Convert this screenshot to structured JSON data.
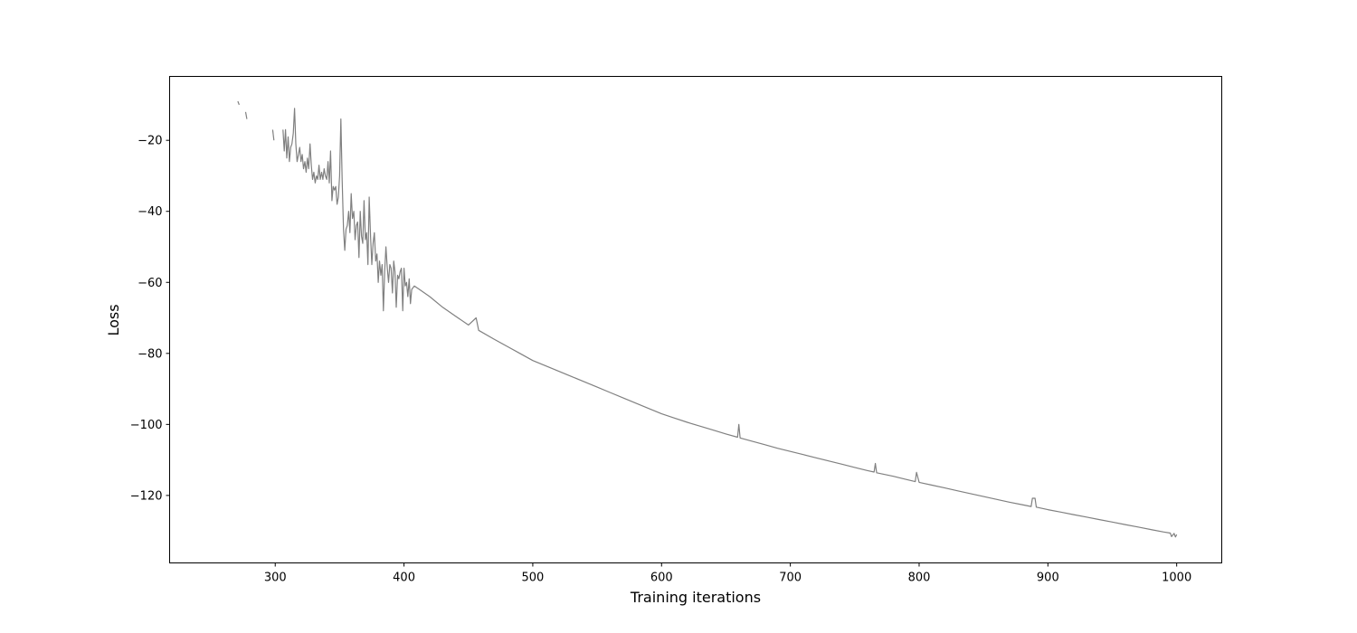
{
  "chart_data": {
    "type": "line",
    "title": "",
    "xlabel": "Training iterations",
    "ylabel": "Loss",
    "xlim": [
      218,
      1035
    ],
    "ylim": [
      -139,
      -2
    ],
    "xticks": [
      300,
      400,
      500,
      600,
      700,
      800,
      900,
      1000
    ],
    "yticks": [
      -20,
      -40,
      -60,
      -80,
      -100,
      -120
    ],
    "grid": false,
    "legend": null,
    "line_color": "#808080",
    "series": [
      {
        "segments": [
          [
            [
              271,
              -9
            ],
            [
              272,
              -10
            ]
          ],
          [
            [
              277,
              -12
            ],
            [
              278,
              -14
            ]
          ],
          [
            [
              298,
              -17
            ],
            [
              299,
              -20
            ]
          ],
          [
            [
              306,
              -17
            ],
            [
              307,
              -23
            ],
            [
              308,
              -17
            ],
            [
              309,
              -25
            ],
            [
              310,
              -19
            ],
            [
              311,
              -26
            ],
            [
              312,
              -22
            ],
            [
              313,
              -21
            ],
            [
              314,
              -18
            ],
            [
              315,
              -11
            ],
            [
              316,
              -21
            ],
            [
              317,
              -26
            ],
            [
              318,
              -24
            ],
            [
              319,
              -22
            ],
            [
              320,
              -26
            ],
            [
              321,
              -24
            ],
            [
              322,
              -28
            ],
            [
              323,
              -26
            ],
            [
              324,
              -29
            ],
            [
              325,
              -25
            ],
            [
              326,
              -28
            ],
            [
              327,
              -21
            ],
            [
              328,
              -27
            ],
            [
              329,
              -31
            ],
            [
              330,
              -29
            ],
            [
              331,
              -32
            ],
            [
              332,
              -30
            ],
            [
              333,
              -31
            ],
            [
              334,
              -27
            ],
            [
              335,
              -31
            ],
            [
              336,
              -29
            ],
            [
              337,
              -31
            ],
            [
              338,
              -28
            ],
            [
              339,
              -30
            ],
            [
              340,
              -31
            ],
            [
              341,
              -26
            ],
            [
              342,
              -32
            ],
            [
              343,
              -23
            ],
            [
              344,
              -37
            ],
            [
              345,
              -33
            ],
            [
              346,
              -34
            ],
            [
              347,
              -33
            ],
            [
              348,
              -38
            ],
            [
              349,
              -36
            ],
            [
              350,
              -30
            ],
            [
              351,
              -14
            ],
            [
              352,
              -31
            ],
            [
              353,
              -45
            ],
            [
              354,
              -51
            ],
            [
              355,
              -45
            ],
            [
              356,
              -44
            ],
            [
              357,
              -40
            ],
            [
              358,
              -46
            ],
            [
              359,
              -35
            ],
            [
              360,
              -42
            ],
            [
              361,
              -40
            ],
            [
              362,
              -48
            ],
            [
              363,
              -44
            ],
            [
              364,
              -43
            ],
            [
              365,
              -53
            ],
            [
              366,
              -40
            ],
            [
              367,
              -47
            ],
            [
              368,
              -49
            ],
            [
              369,
              -37
            ],
            [
              370,
              -48
            ],
            [
              371,
              -46
            ],
            [
              372,
              -55
            ],
            [
              373,
              -36
            ],
            [
              374,
              -47
            ],
            [
              375,
              -55
            ],
            [
              376,
              -49
            ],
            [
              377,
              -46
            ],
            [
              378,
              -54
            ],
            [
              379,
              -52
            ],
            [
              380,
              -60
            ],
            [
              381,
              -54
            ],
            [
              382,
              -58
            ],
            [
              383,
              -55
            ],
            [
              384,
              -68
            ],
            [
              385,
              -57
            ],
            [
              386,
              -50
            ],
            [
              387,
              -56
            ],
            [
              388,
              -60
            ],
            [
              389,
              -55
            ],
            [
              390,
              -56
            ],
            [
              391,
              -63
            ],
            [
              392,
              -54
            ],
            [
              393,
              -57
            ],
            [
              394,
              -67
            ],
            [
              395,
              -58
            ],
            [
              396,
              -59
            ],
            [
              397,
              -57
            ],
            [
              398,
              -56
            ],
            [
              399,
              -68
            ],
            [
              400,
              -56
            ],
            [
              401,
              -61
            ],
            [
              402,
              -60
            ],
            [
              403,
              -64
            ],
            [
              404,
              -59
            ],
            [
              405,
              -66
            ],
            [
              406,
              -62
            ],
            [
              408,
              -61
            ],
            [
              412,
              -62
            ],
            [
              420,
              -64
            ],
            [
              430,
              -67
            ],
            [
              440,
              -69.5
            ],
            [
              450,
              -72
            ],
            [
              456,
              -70
            ],
            [
              458,
              -73.5
            ],
            [
              470,
              -76
            ],
            [
              480,
              -78
            ],
            [
              490,
              -80
            ],
            [
              500,
              -82
            ],
            [
              510,
              -83.5
            ],
            [
              520,
              -85
            ],
            [
              530,
              -86.5
            ],
            [
              540,
              -88
            ],
            [
              550,
              -89.5
            ],
            [
              560,
              -91
            ],
            [
              570,
              -92.5
            ],
            [
              580,
              -94
            ],
            [
              590,
              -95.5
            ],
            [
              600,
              -97
            ],
            [
              610,
              -98.2
            ],
            [
              620,
              -99.4
            ],
            [
              630,
              -100.5
            ],
            [
              640,
              -101.6
            ],
            [
              650,
              -102.7
            ],
            [
              659,
              -103.6
            ],
            [
              660,
              -100
            ],
            [
              661,
              -103.8
            ],
            [
              670,
              -104.7
            ],
            [
              680,
              -105.7
            ],
            [
              690,
              -106.7
            ],
            [
              700,
              -107.6
            ],
            [
              710,
              -108.5
            ],
            [
              720,
              -109.4
            ],
            [
              730,
              -110.3
            ],
            [
              740,
              -111.2
            ],
            [
              750,
              -112.1
            ],
            [
              760,
              -113
            ],
            [
              765,
              -113.4
            ],
            [
              766,
              -111
            ],
            [
              767,
              -113.6
            ],
            [
              780,
              -114.6
            ],
            [
              790,
              -115.5
            ],
            [
              797,
              -116.1
            ],
            [
              798,
              -113.5
            ],
            [
              800,
              -116.3
            ],
            [
              810,
              -117.1
            ],
            [
              820,
              -117.9
            ],
            [
              830,
              -118.7
            ],
            [
              840,
              -119.5
            ],
            [
              850,
              -120.3
            ],
            [
              860,
              -121.1
            ],
            [
              870,
              -121.9
            ],
            [
              880,
              -122.6
            ],
            [
              887,
              -123.1
            ],
            [
              888,
              -120.8
            ],
            [
              890,
              -120.8
            ],
            [
              891,
              -123.3
            ],
            [
              900,
              -124
            ],
            [
              910,
              -124.7
            ],
            [
              920,
              -125.4
            ],
            [
              930,
              -126.1
            ],
            [
              940,
              -126.8
            ],
            [
              950,
              -127.5
            ],
            [
              960,
              -128.2
            ],
            [
              970,
              -128.9
            ],
            [
              980,
              -129.6
            ],
            [
              990,
              -130.3
            ],
            [
              995,
              -130.6
            ],
            [
              996,
              -131.6
            ],
            [
              998,
              -130.7
            ],
            [
              999,
              -131.7
            ],
            [
              1000,
              -131
            ]
          ]
        ]
      }
    ]
  }
}
